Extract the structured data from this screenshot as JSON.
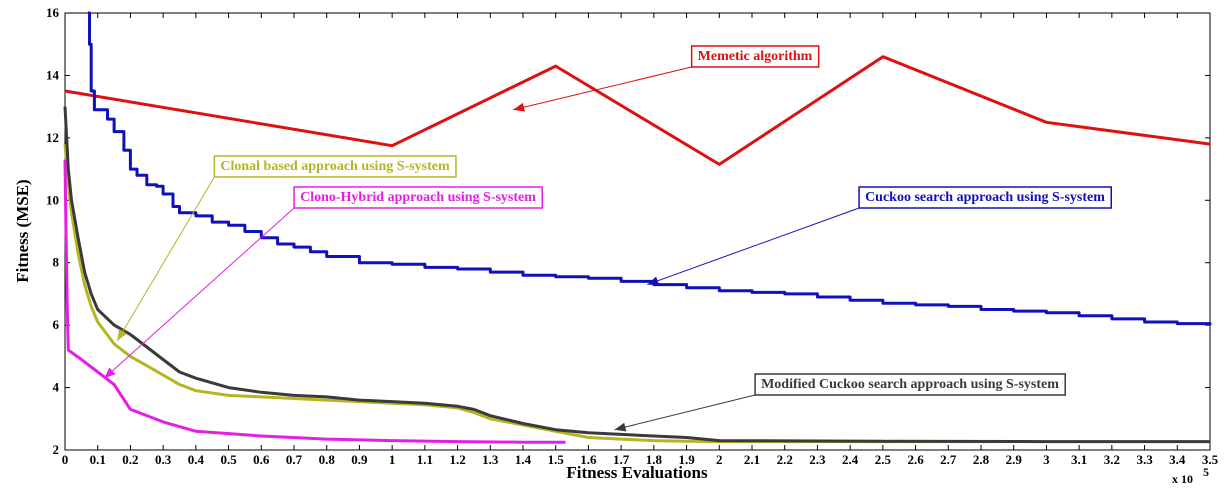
{
  "chart_data": {
    "type": "line",
    "xlabel": "Fitness Evaluations",
    "ylabel": "Fitness (MSE)",
    "x_scale_note": "x 10",
    "x_scale_exponent": "5",
    "xlim": [
      0,
      3.5
    ],
    "ylim": [
      2,
      16
    ],
    "x_ticks": [
      "0",
      "0.1",
      "0.2",
      "0.3",
      "0.4",
      "0.5",
      "0.6",
      "0.7",
      "0.8",
      "0.9",
      "1",
      "1.1",
      "1.2",
      "1.3",
      "1.4",
      "1.5",
      "1.6",
      "1.7",
      "1.8",
      "1.9",
      "2",
      "2.1",
      "2.2",
      "2.3",
      "2.4",
      "2.5",
      "2.6",
      "2.7",
      "2.8",
      "2.9",
      "3",
      "3.1",
      "3.2",
      "3.3",
      "3.4",
      "3.5"
    ],
    "y_ticks": [
      "2",
      "4",
      "6",
      "8",
      "10",
      "12",
      "14",
      "16"
    ],
    "grid": false,
    "series": [
      {
        "name": "Memetic algorithm",
        "color": "#dd1111",
        "step": false,
        "x": [
          0,
          1.0,
          1.5,
          2.0,
          2.5,
          3.0,
          3.5
        ],
        "y": [
          13.5,
          11.75,
          14.3,
          11.15,
          14.6,
          12.5,
          11.8
        ]
      },
      {
        "name": "Cuckoo search approach using S-system",
        "color": "#1111bb",
        "step": true,
        "x": [
          0.07,
          0.075,
          0.08,
          0.09,
          0.1,
          0.13,
          0.15,
          0.18,
          0.2,
          0.22,
          0.25,
          0.28,
          0.3,
          0.33,
          0.35,
          0.4,
          0.45,
          0.5,
          0.55,
          0.6,
          0.65,
          0.7,
          0.75,
          0.8,
          0.9,
          1.0,
          1.1,
          1.2,
          1.3,
          1.4,
          1.5,
          1.6,
          1.7,
          1.8,
          1.9,
          2.0,
          2.1,
          2.2,
          2.3,
          2.4,
          2.5,
          2.6,
          2.7,
          2.8,
          2.9,
          3.0,
          3.1,
          3.2,
          3.3,
          3.4,
          3.5
        ],
        "y": [
          16.0,
          15.0,
          13.5,
          12.9,
          12.9,
          12.6,
          12.2,
          11.6,
          11.0,
          10.8,
          10.5,
          10.45,
          10.2,
          9.8,
          9.6,
          9.5,
          9.3,
          9.2,
          9.0,
          8.8,
          8.6,
          8.5,
          8.35,
          8.2,
          8.0,
          7.95,
          7.85,
          7.8,
          7.7,
          7.6,
          7.55,
          7.5,
          7.4,
          7.3,
          7.2,
          7.1,
          7.05,
          7.0,
          6.9,
          6.8,
          6.7,
          6.65,
          6.6,
          6.5,
          6.45,
          6.4,
          6.3,
          6.2,
          6.1,
          6.05,
          6.0
        ]
      },
      {
        "name": "Clonal based approach using S-system",
        "color": "#b5b522",
        "step": false,
        "x": [
          0,
          0.01,
          0.02,
          0.04,
          0.06,
          0.08,
          0.1,
          0.15,
          0.2,
          0.25,
          0.3,
          0.35,
          0.4,
          0.5,
          0.6,
          0.7,
          0.8,
          0.9,
          1.0,
          1.1,
          1.2,
          1.25,
          1.3,
          1.4,
          1.5,
          1.6,
          1.7,
          1.8,
          1.9,
          2.0,
          2.5,
          2.85
        ],
        "y": [
          11.8,
          10.5,
          9.6,
          8.3,
          7.3,
          6.6,
          6.1,
          5.4,
          5.0,
          4.7,
          4.4,
          4.1,
          3.9,
          3.75,
          3.7,
          3.65,
          3.6,
          3.55,
          3.5,
          3.45,
          3.35,
          3.2,
          3.0,
          2.8,
          2.6,
          2.4,
          2.35,
          2.3,
          2.28,
          2.27,
          2.27,
          2.27
        ]
      },
      {
        "name": "Modified Cuckoo search approach using S-system",
        "color": "#3a3a3a",
        "step": false,
        "x": [
          0,
          0.01,
          0.02,
          0.04,
          0.06,
          0.08,
          0.1,
          0.15,
          0.2,
          0.25,
          0.3,
          0.35,
          0.4,
          0.5,
          0.6,
          0.7,
          0.8,
          0.9,
          1.0,
          1.1,
          1.2,
          1.25,
          1.3,
          1.4,
          1.5,
          1.6,
          1.7,
          1.8,
          1.9,
          2.0,
          2.5,
          3.0,
          3.5
        ],
        "y": [
          13.0,
          11.0,
          10.0,
          8.8,
          7.7,
          7.0,
          6.5,
          6.0,
          5.7,
          5.3,
          4.9,
          4.5,
          4.3,
          4.0,
          3.85,
          3.75,
          3.7,
          3.6,
          3.55,
          3.5,
          3.4,
          3.3,
          3.1,
          2.85,
          2.65,
          2.55,
          2.5,
          2.45,
          2.4,
          2.3,
          2.28,
          2.27,
          2.27
        ]
      },
      {
        "name": "Clono-Hybrid approach using S-system",
        "color": "#e51ee5",
        "step": false,
        "x": [
          0,
          0.003,
          0.007,
          0.01,
          0.05,
          0.1,
          0.15,
          0.2,
          0.3,
          0.4,
          0.6,
          0.8,
          1.0,
          1.2,
          1.4,
          1.53
        ],
        "y": [
          11.3,
          9.0,
          6.5,
          5.2,
          4.9,
          4.5,
          4.1,
          3.3,
          2.9,
          2.6,
          2.45,
          2.35,
          2.3,
          2.27,
          2.25,
          2.25
        ]
      }
    ],
    "annotations": [
      {
        "text": "Memetic algorithm",
        "color": "#dd1111",
        "target": [
          1.37,
          12.9
        ]
      },
      {
        "text": "Clonal based approach using S-system",
        "color": "#b5b522",
        "target": [
          0.16,
          5.5
        ]
      },
      {
        "text": "Clono-Hybrid approach using S-system",
        "color": "#e51ee5",
        "target": [
          0.12,
          4.3
        ]
      },
      {
        "text": "Cuckoo search approach using S-system",
        "color": "#1111bb",
        "target": [
          1.78,
          7.3
        ]
      },
      {
        "text": "Modified Cuckoo search approach using S-system",
        "color": "#3a3a3a",
        "target": [
          1.68,
          2.65
        ]
      }
    ]
  }
}
